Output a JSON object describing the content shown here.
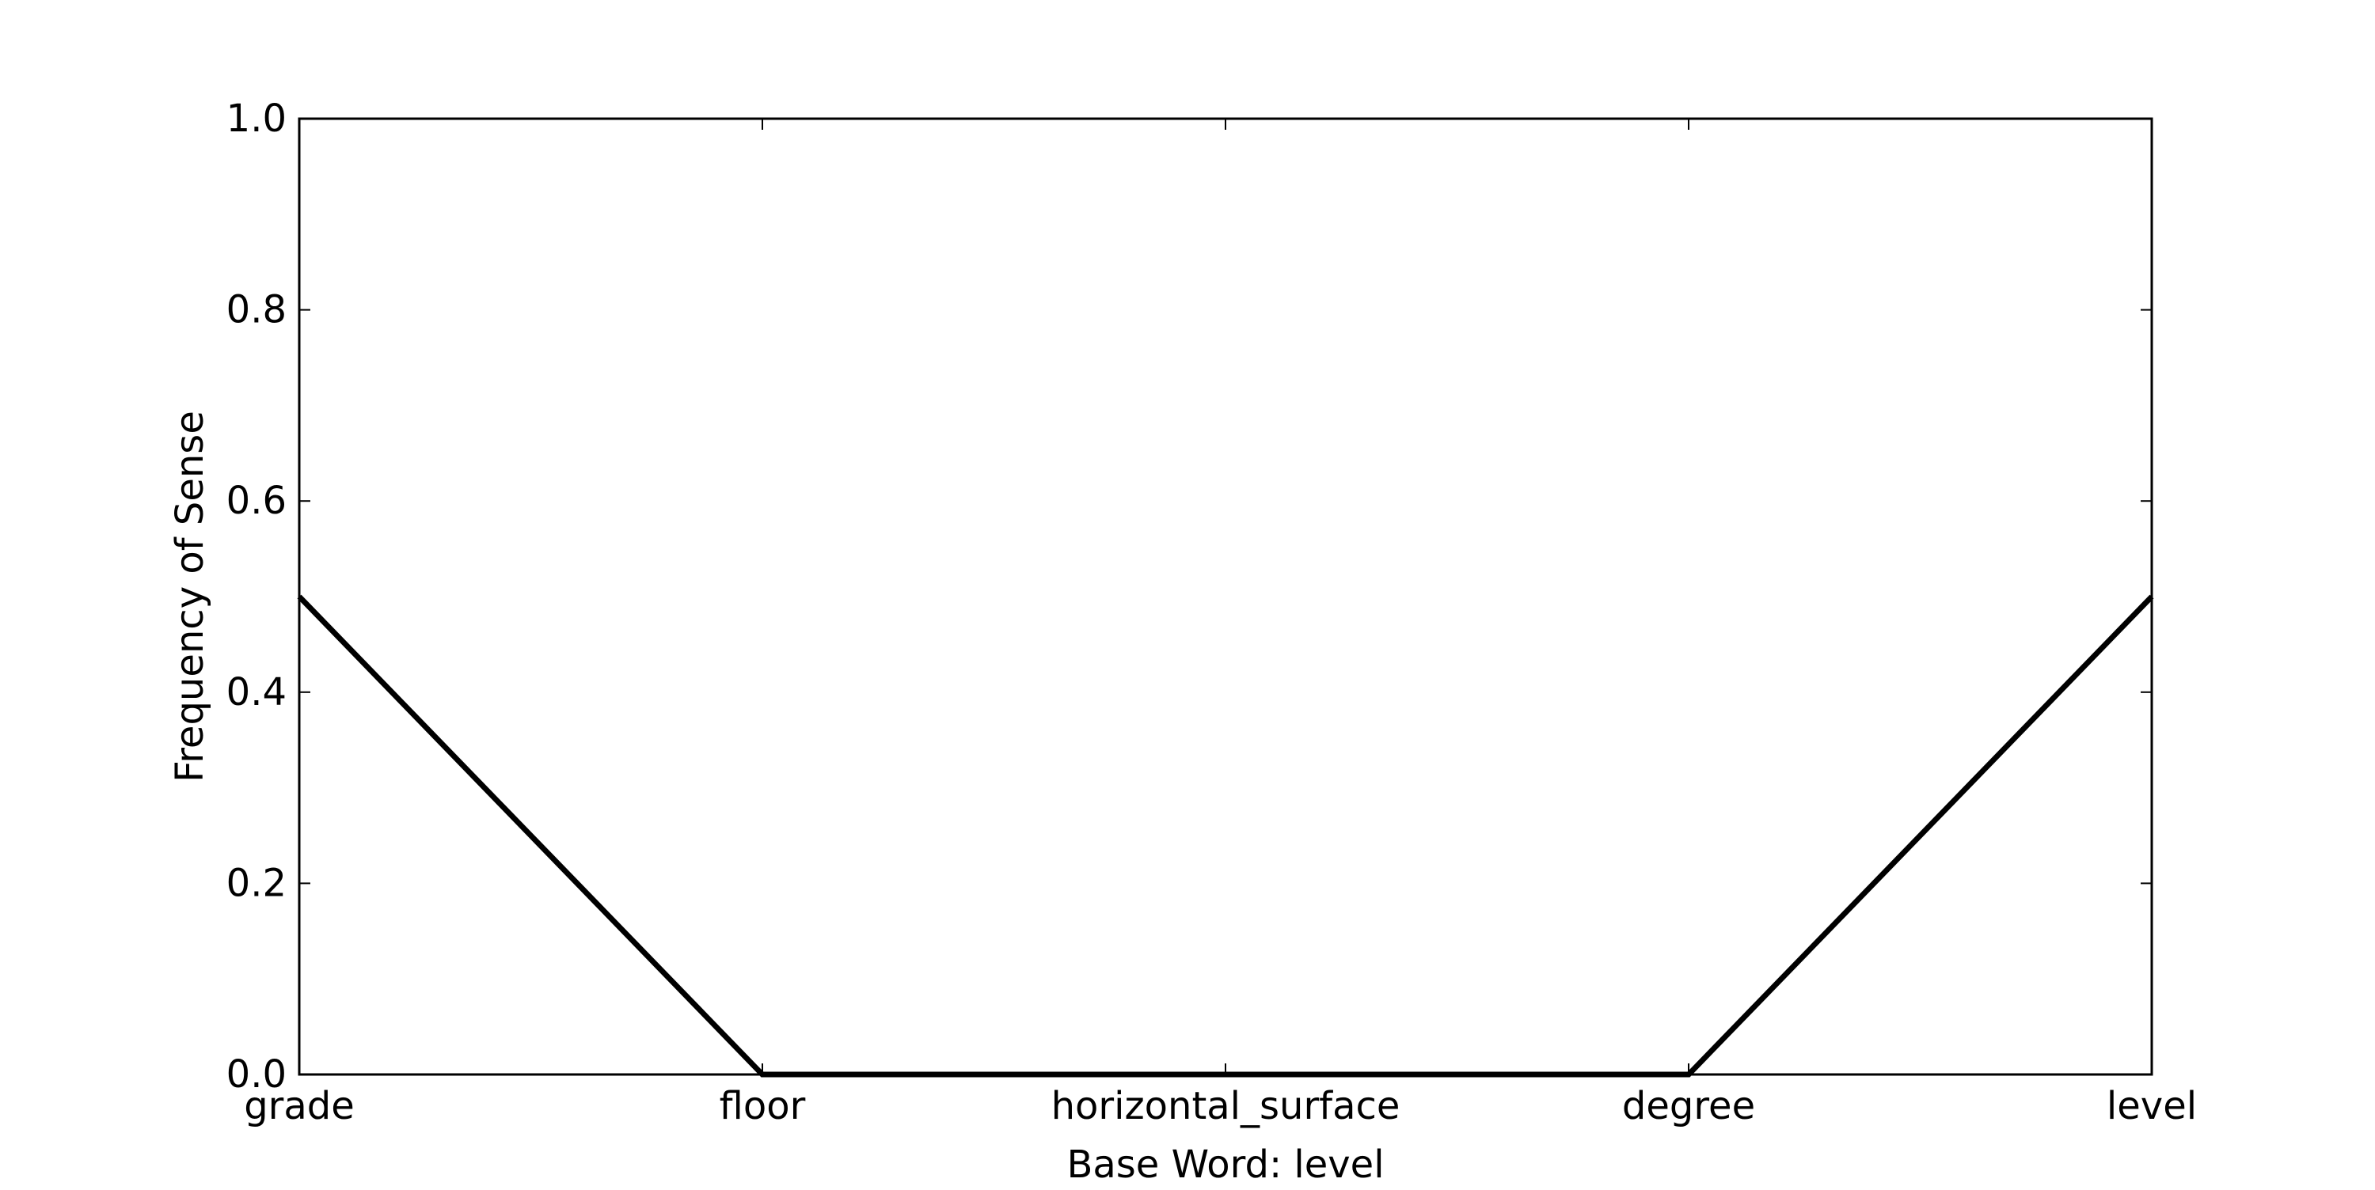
{
  "chart_data": {
    "type": "line",
    "title": "",
    "xlabel": "Base Word: level",
    "ylabel": "Frequency of Sense",
    "categories": [
      "grade",
      "floor",
      "horizontal_surface",
      "degree",
      "level"
    ],
    "series": [
      {
        "values": [
          0.5,
          0.0,
          0.0,
          0.0,
          0.5
        ]
      }
    ],
    "ylim": [
      0,
      1
    ],
    "yticks": [
      "0.0",
      "0.2",
      "0.4",
      "0.6",
      "0.8",
      "1.0"
    ],
    "grid": false,
    "line_color": "#000000"
  }
}
